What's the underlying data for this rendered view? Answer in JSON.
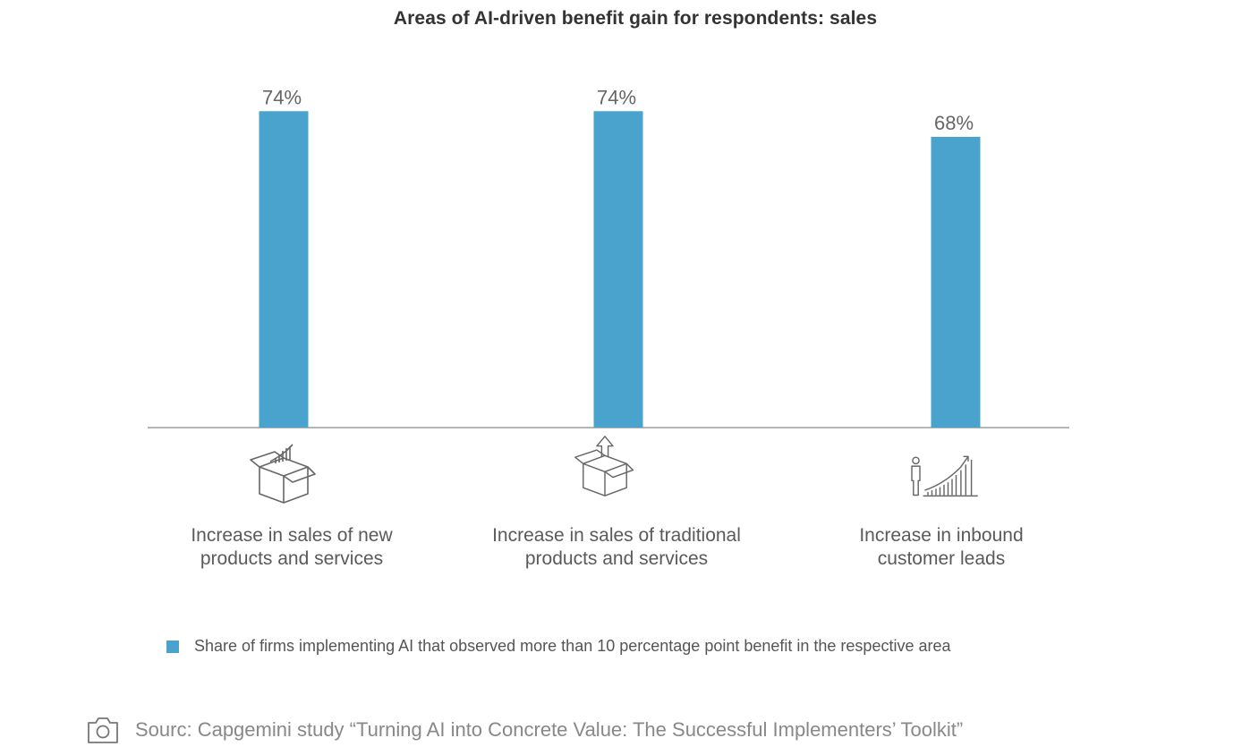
{
  "chart_data": {
    "type": "bar",
    "title": "Areas of AI-driven benefit gain for respondents: sales",
    "categories": [
      [
        "Increase in sales of new",
        "products and services"
      ],
      [
        "Increase in sales of traditional",
        "products and services"
      ],
      [
        "Increase in inbound",
        "customer leads"
      ]
    ],
    "values": [
      74,
      74,
      68
    ],
    "value_labels": [
      "74%",
      "74%",
      "68%"
    ],
    "value_suffix": "%",
    "ylim": [
      0,
      100
    ],
    "xlabel": "",
    "ylabel": "",
    "grid": false,
    "bar_color": "#4aa3cc",
    "legend": {
      "position": "bottom",
      "entries": [
        {
          "label": "Share of firms implementing AI that observed more than 10 percentage point benefit in the respective area",
          "color": "#4aa3cc"
        }
      ]
    },
    "icons": [
      "box-with-rising-chart-icon",
      "box-with-up-arrow-icon",
      "person-with-growth-chart-icon"
    ]
  },
  "source": {
    "icon": "camera-icon",
    "text": "Sourc: Capgemini study “Turning AI into Concrete Value: The Successful Implementers’ Toolkit”"
  }
}
